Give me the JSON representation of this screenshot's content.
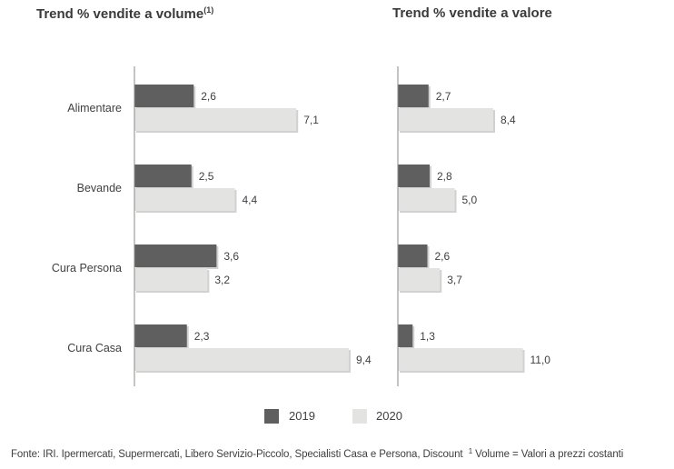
{
  "colors": {
    "series_2019": "#5f5f5f",
    "series_2020": "#e3e3e1",
    "axis": "#8a8a8a",
    "shadow": "#bdbdbd"
  },
  "chart_data": [
    {
      "type": "bar",
      "orientation": "horizontal",
      "title": "Trend % vendite a volume",
      "title_sup": "(1)",
      "categories": [
        "Alimentare",
        "Bevande",
        "Cura Persona",
        "Cura Casa"
      ],
      "series": [
        {
          "name": "2019",
          "values": [
            2.6,
            2.5,
            3.6,
            2.3
          ],
          "labels": [
            "2,6",
            "2,5",
            "3,6",
            "2,3"
          ]
        },
        {
          "name": "2020",
          "values": [
            7.1,
            4.4,
            3.2,
            9.4
          ],
          "labels": [
            "7,1",
            "4,4",
            "3,2",
            "9,4"
          ]
        }
      ],
      "xlim": [
        0,
        12
      ],
      "grid": false
    },
    {
      "type": "bar",
      "orientation": "horizontal",
      "title": "Trend % vendite a valore",
      "categories": [
        "Alimentare",
        "Bevande",
        "Cura Persona",
        "Cura Casa"
      ],
      "series": [
        {
          "name": "2019",
          "values": [
            2.7,
            2.8,
            2.6,
            1.3
          ],
          "labels": [
            "2,7",
            "2,8",
            "2,6",
            "1,3"
          ]
        },
        {
          "name": "2020",
          "values": [
            8.4,
            5.0,
            3.7,
            11.0
          ],
          "labels": [
            "8,4",
            "5,0",
            "3,7",
            "11,0"
          ]
        }
      ],
      "xlim": [
        0,
        12
      ],
      "grid": false
    }
  ],
  "legend": {
    "items": [
      "2019",
      "2020"
    ],
    "placement": "bottom"
  },
  "footnote": {
    "source": "Fonte: IRI. Ipermercati, Supermercati, Libero Servizio-Piccolo, Specialisti Casa e Persona, Discount",
    "note_mark": "1",
    "note": " Volume = Valori a prezzi costanti"
  }
}
